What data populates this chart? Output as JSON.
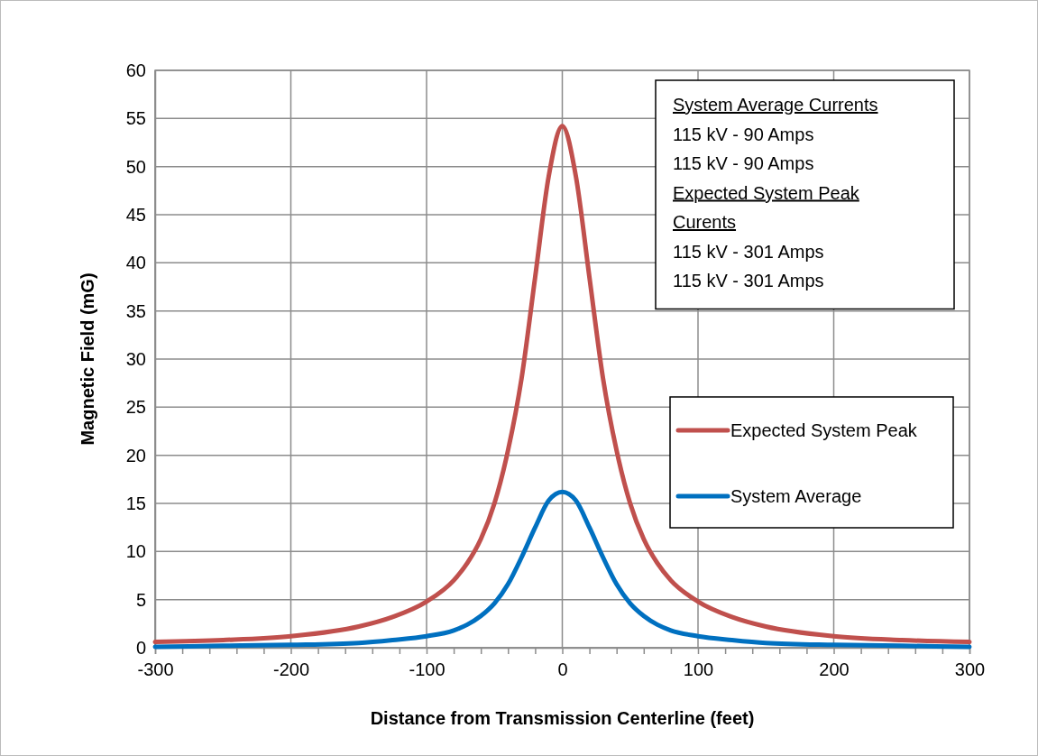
{
  "chart_data": {
    "type": "line",
    "xlabel": "Distance from Transmission Centerline (feet)",
    "ylabel": "Magnetic Field (mG)",
    "x": [
      -300,
      -250,
      -200,
      -150,
      -125,
      -100,
      -80,
      -70,
      -60,
      -50,
      -40,
      -30,
      -20,
      -10,
      0,
      10,
      20,
      30,
      40,
      50,
      60,
      70,
      80,
      100,
      125,
      150,
      200,
      250,
      300
    ],
    "series": [
      {
        "name": "Expected System Peak",
        "color": "#c0504d",
        "values": [
          0.6,
          0.8,
          1.2,
          2.2,
          3.2,
          4.8,
          7.0,
          8.8,
          11.3,
          15,
          20.5,
          28,
          38.5,
          49,
          54.2,
          49,
          38.5,
          28,
          20.5,
          15,
          11.3,
          8.8,
          7.0,
          4.8,
          3.2,
          2.2,
          1.2,
          0.8,
          0.6
        ]
      },
      {
        "name": "System Average",
        "color": "#0070c0",
        "values": [
          0.1,
          0.2,
          0.3,
          0.5,
          0.8,
          1.2,
          1.8,
          2.4,
          3.3,
          4.6,
          6.6,
          9.4,
          12.5,
          15.3,
          16.2,
          15.3,
          12.5,
          9.4,
          6.6,
          4.6,
          3.3,
          2.4,
          1.8,
          1.2,
          0.8,
          0.5,
          0.3,
          0.2,
          0.1
        ]
      }
    ],
    "xlim": [
      -300,
      300
    ],
    "xticks": [
      -300,
      {
        "value": -280,
        "label": null
      },
      {
        "value": -260,
        "label": null
      },
      {
        "value": -240,
        "label": null
      },
      {
        "value": -220,
        "label": null
      },
      -200,
      {
        "value": -180,
        "label": null
      },
      {
        "value": -160,
        "label": null
      },
      {
        "value": -140,
        "label": null
      },
      {
        "value": -120,
        "label": null
      },
      -100,
      {
        "value": -80,
        "label": null
      },
      {
        "value": -60,
        "label": null
      },
      {
        "value": -40,
        "label": null
      },
      {
        "value": -20,
        "label": null
      },
      0,
      {
        "value": 20,
        "label": null
      },
      {
        "value": 40,
        "label": null
      },
      {
        "value": 60,
        "label": null
      },
      {
        "value": 80,
        "label": null
      },
      100,
      {
        "value": 120,
        "label": null
      },
      {
        "value": 140,
        "label": null
      },
      {
        "value": 160,
        "label": null
      },
      {
        "value": 180,
        "label": null
      },
      200,
      {
        "value": 220,
        "label": null
      },
      {
        "value": 240,
        "label": null
      },
      {
        "value": 260,
        "label": null
      },
      {
        "value": 280,
        "label": null
      },
      300
    ],
    "ylim": [
      0,
      60
    ],
    "yticks": [
      0,
      5,
      10,
      15,
      20,
      25,
      30,
      35,
      40,
      45,
      50,
      55,
      60
    ],
    "grid": true,
    "legend": "right",
    "marker": "none",
    "line_style": "solid",
    "annotations": [
      "System Average Currents",
      "115 kV - 90 Amps",
      "115 kV - 90 Amps",
      "Expected System Peak Curents",
      "115 kV - 301 Amps",
      "115 kV - 301 Amps"
    ]
  }
}
